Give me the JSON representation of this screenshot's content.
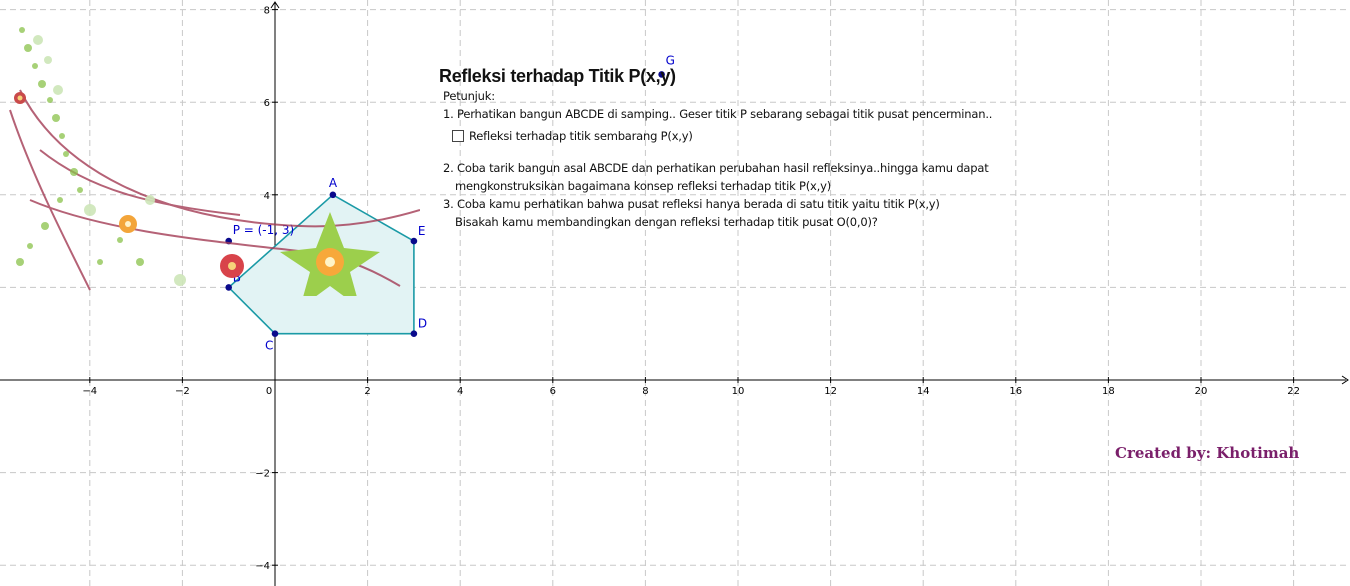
{
  "app": {
    "panel": {
      "title": "Refleksi terhadap Titik P(x,y)",
      "heading": "Petunjuk:",
      "step1": "1. Perhatikan bangun ABCDE di samping.. Geser titik P sebarang sebagai titik pusat pencerminan..",
      "checkbox_label": "Refleksi terhadap titik sembarang P(x,y)",
      "step2_line1": "2. Coba tarik bangun asal ABCDE dan perhatikan perubahan hasil refleksinya..hingga kamu dapat",
      "step2_line2": "mengkonstruksikan bagaimana konsep refleksi terhadap titik P(x,y)",
      "step3_line1": "3. Coba kamu perhatikan bahwa pusat refleksi hanya berada di satu titik yaitu titik P(x,y)",
      "step3_line2": "Bisakah kamu membandingkan dengan refleksi terhadap titik pusat O(0,0)?"
    },
    "credit": "Created by: Khotimah"
  },
  "colors": {
    "polygon_fill": "#e2f3f4",
    "polygon_stroke": "#1a9aa6",
    "point": "#0a0a8c",
    "label": "#0000cc",
    "credit": "#7a1f6a"
  },
  "chart_data": {
    "type": "scatter",
    "xlim": [
      -6,
      23
    ],
    "ylim": [
      -4.5,
      8.2
    ],
    "x_ticks": [
      -4,
      -2,
      0,
      2,
      4,
      6,
      8,
      10,
      12,
      14,
      16,
      18,
      20,
      22
    ],
    "y_ticks": [
      -4,
      -2,
      2,
      4,
      6,
      8
    ],
    "grid": true,
    "points": [
      {
        "name": "A",
        "x": 1.25,
        "y": 4
      },
      {
        "name": "E",
        "x": 3,
        "y": 3
      },
      {
        "name": "D",
        "x": 3,
        "y": 1
      },
      {
        "name": "C",
        "x": 0,
        "y": 1
      },
      {
        "name": "B",
        "x": -1,
        "y": 2
      },
      {
        "name": "G",
        "x": 8.35,
        "y": 6.6
      }
    ],
    "polygon": [
      "A",
      "E",
      "D",
      "C",
      "B"
    ],
    "center_point": {
      "label": "P = (-1, 3)",
      "x": -1,
      "y": 3
    }
  }
}
